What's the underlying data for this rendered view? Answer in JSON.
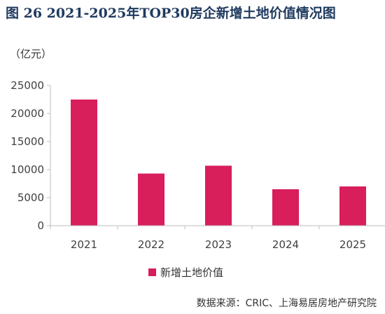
{
  "figure": {
    "title": "图 26  2021-2025年TOP30房企新增土地价值情况图",
    "unit": "（亿元）",
    "source": "数据来源：CRIC、上海易居房地产研究院"
  },
  "colors": {
    "bar": "#d81e5b",
    "axis": "#bfbfbf"
  },
  "chart_data": {
    "type": "bar",
    "categories": [
      "2021",
      "2022",
      "2023",
      "2024",
      "2025"
    ],
    "series": [
      {
        "name": "新增土地价值",
        "values": [
          22500,
          9300,
          10700,
          6500,
          7000
        ]
      }
    ],
    "ylim": [
      0,
      25000
    ],
    "yticks": [
      "0",
      "5000",
      "10000",
      "15000",
      "20000",
      "25000"
    ],
    "grid": false,
    "legend": "bottom"
  }
}
